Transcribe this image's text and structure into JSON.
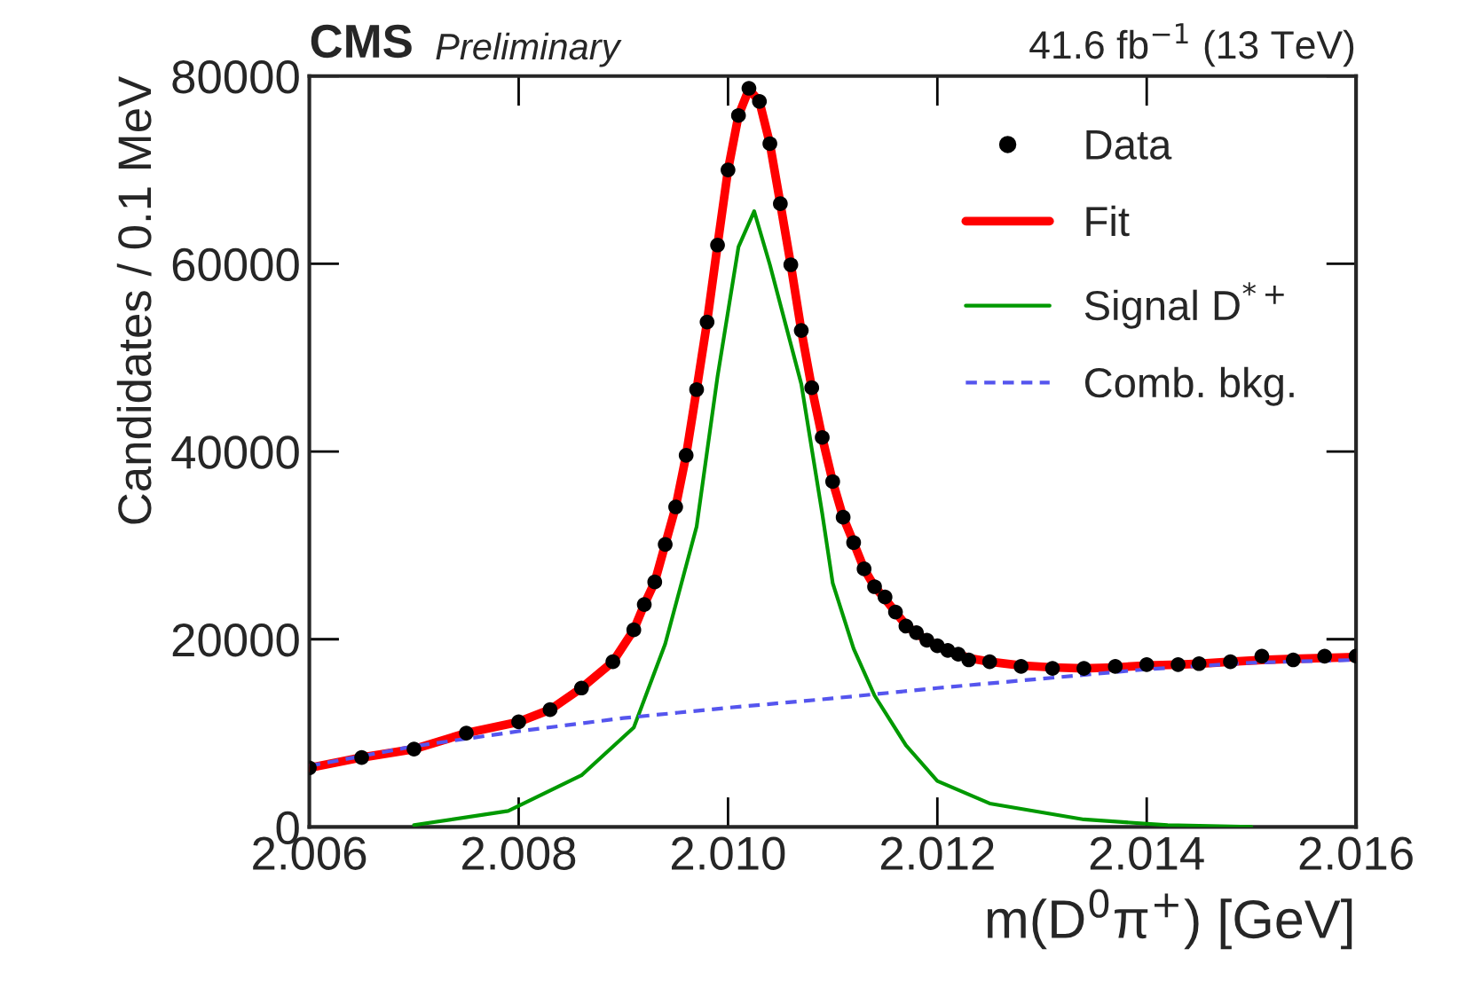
{
  "chart_data": {
    "type": "line",
    "xlabel": "m(D$^{0}$π$^{+}$) [GeV]",
    "ylabel": "Candidates / 0.1 MeV",
    "annotations": [
      "CMS",
      "Preliminary",
      "41.6 fb$^{−1}$ (13 TeV)"
    ],
    "xlim": [
      2.006,
      2.016
    ],
    "xticks": [
      {
        "value": 2.006,
        "label": "2.006"
      },
      {
        "value": 2.008,
        "label": "2.008"
      },
      {
        "value": 2.01,
        "label": "2.010"
      },
      {
        "value": 2.012,
        "label": "2.012"
      },
      {
        "value": 2.014,
        "label": "2.014"
      },
      {
        "value": 2.016,
        "label": "2.016"
      }
    ],
    "ylim": [
      0,
      80000
    ],
    "yticks": [
      0,
      20000,
      40000,
      60000,
      80000
    ],
    "legend": "top right",
    "grid": false,
    "series": [
      {
        "name": "Data",
        "type": "scatter",
        "marker": "circle",
        "color": "#000000",
        "x": [
          2.006,
          2.0065,
          2.007,
          2.0075,
          2.008,
          2.0083,
          2.0086,
          2.0089,
          2.0091,
          2.0092,
          2.0093,
          2.0094,
          2.0095,
          2.0096,
          2.0097,
          2.0098,
          2.0099,
          2.01,
          2.0101,
          2.0102,
          2.0103,
          2.0104,
          2.0105,
          2.0106,
          2.0107,
          2.0108,
          2.0109,
          2.011,
          2.0111,
          2.0112,
          2.0113,
          2.0114,
          2.0115,
          2.0116,
          2.0117,
          2.0118,
          2.0119,
          2.012,
          2.0121,
          2.0122,
          2.0123,
          2.0125,
          2.0128,
          2.0131,
          2.0134,
          2.0137,
          2.014,
          2.0143,
          2.0145,
          2.0148,
          2.0151,
          2.0154,
          2.0157,
          2.016
        ],
        "values": [
          6300,
          7400,
          8300,
          10000,
          11200,
          12500,
          14800,
          17600,
          21000,
          23700,
          26100,
          30100,
          34100,
          39600,
          46600,
          53800,
          62000,
          70000,
          75800,
          78700,
          77300,
          72800,
          66400,
          59900,
          52900,
          46800,
          41500,
          36800,
          33000,
          30300,
          27500,
          25600,
          24500,
          22900,
          21400,
          20700,
          19900,
          19300,
          18800,
          18400,
          17800,
          17600,
          17100,
          16900,
          16900,
          17100,
          17300,
          17300,
          17400,
          17600,
          18200,
          17800,
          18200,
          18200
        ]
      },
      {
        "name": "Fit",
        "type": "line",
        "color": "#ff0000",
        "line_style": "solid",
        "x": [
          2.006,
          2.0065,
          2.007,
          2.0075,
          2.008,
          2.0083,
          2.0086,
          2.0089,
          2.0091,
          2.0092,
          2.0093,
          2.0094,
          2.0095,
          2.0096,
          2.0097,
          2.0098,
          2.0099,
          2.01,
          2.0101,
          2.0102,
          2.0103,
          2.0104,
          2.0105,
          2.0106,
          2.0107,
          2.0108,
          2.0109,
          2.011,
          2.0111,
          2.0112,
          2.0113,
          2.0114,
          2.0115,
          2.0116,
          2.0117,
          2.0118,
          2.0119,
          2.012,
          2.0121,
          2.0122,
          2.0123,
          2.0125,
          2.0128,
          2.0131,
          2.0134,
          2.0137,
          2.014,
          2.0143,
          2.0145,
          2.0148,
          2.0151,
          2.0154,
          2.0157,
          2.016
        ],
        "values": [
          6300,
          7400,
          8300,
          10000,
          11200,
          12500,
          14800,
          17600,
          21000,
          23700,
          26100,
          30100,
          34100,
          39600,
          46600,
          53800,
          62000,
          70000,
          75800,
          78600,
          77300,
          72800,
          66400,
          59900,
          52900,
          46800,
          41500,
          36800,
          33000,
          30300,
          27500,
          25600,
          24300,
          22900,
          21500,
          20600,
          19900,
          19300,
          18800,
          18400,
          18000,
          17600,
          17200,
          17000,
          16900,
          17000,
          17200,
          17300,
          17400,
          17600,
          17800,
          17900,
          18000,
          18100
        ]
      },
      {
        "name": "Signal D$^{*+}$",
        "type": "line",
        "color": "#009900",
        "line_style": "solid",
        "x": [
          2.007,
          2.0079,
          2.0086,
          2.0091,
          2.0094,
          2.0097,
          2.0099,
          2.0101,
          2.01025,
          2.0104,
          2.0107,
          2.0109,
          2.011,
          2.0112,
          2.0114,
          2.0117,
          2.012,
          2.0125,
          2.0134,
          2.0142,
          2.015
        ],
        "values": [
          200,
          1700,
          5500,
          10600,
          19500,
          32000,
          48000,
          61800,
          65600,
          59900,
          47200,
          33400,
          26000,
          19000,
          14000,
          8700,
          4900,
          2500,
          800,
          200,
          0
        ]
      },
      {
        "name": "Comb. bkg.",
        "type": "line",
        "color": "#5555ee",
        "line_style": "dashed",
        "x": [
          2.006,
          2.007,
          2.008,
          2.009,
          2.01,
          2.011,
          2.012,
          2.013,
          2.014,
          2.015,
          2.016
        ],
        "values": [
          6500,
          8600,
          10200,
          11600,
          12700,
          13700,
          14800,
          15800,
          16800,
          17500,
          17800
        ]
      }
    ]
  }
}
